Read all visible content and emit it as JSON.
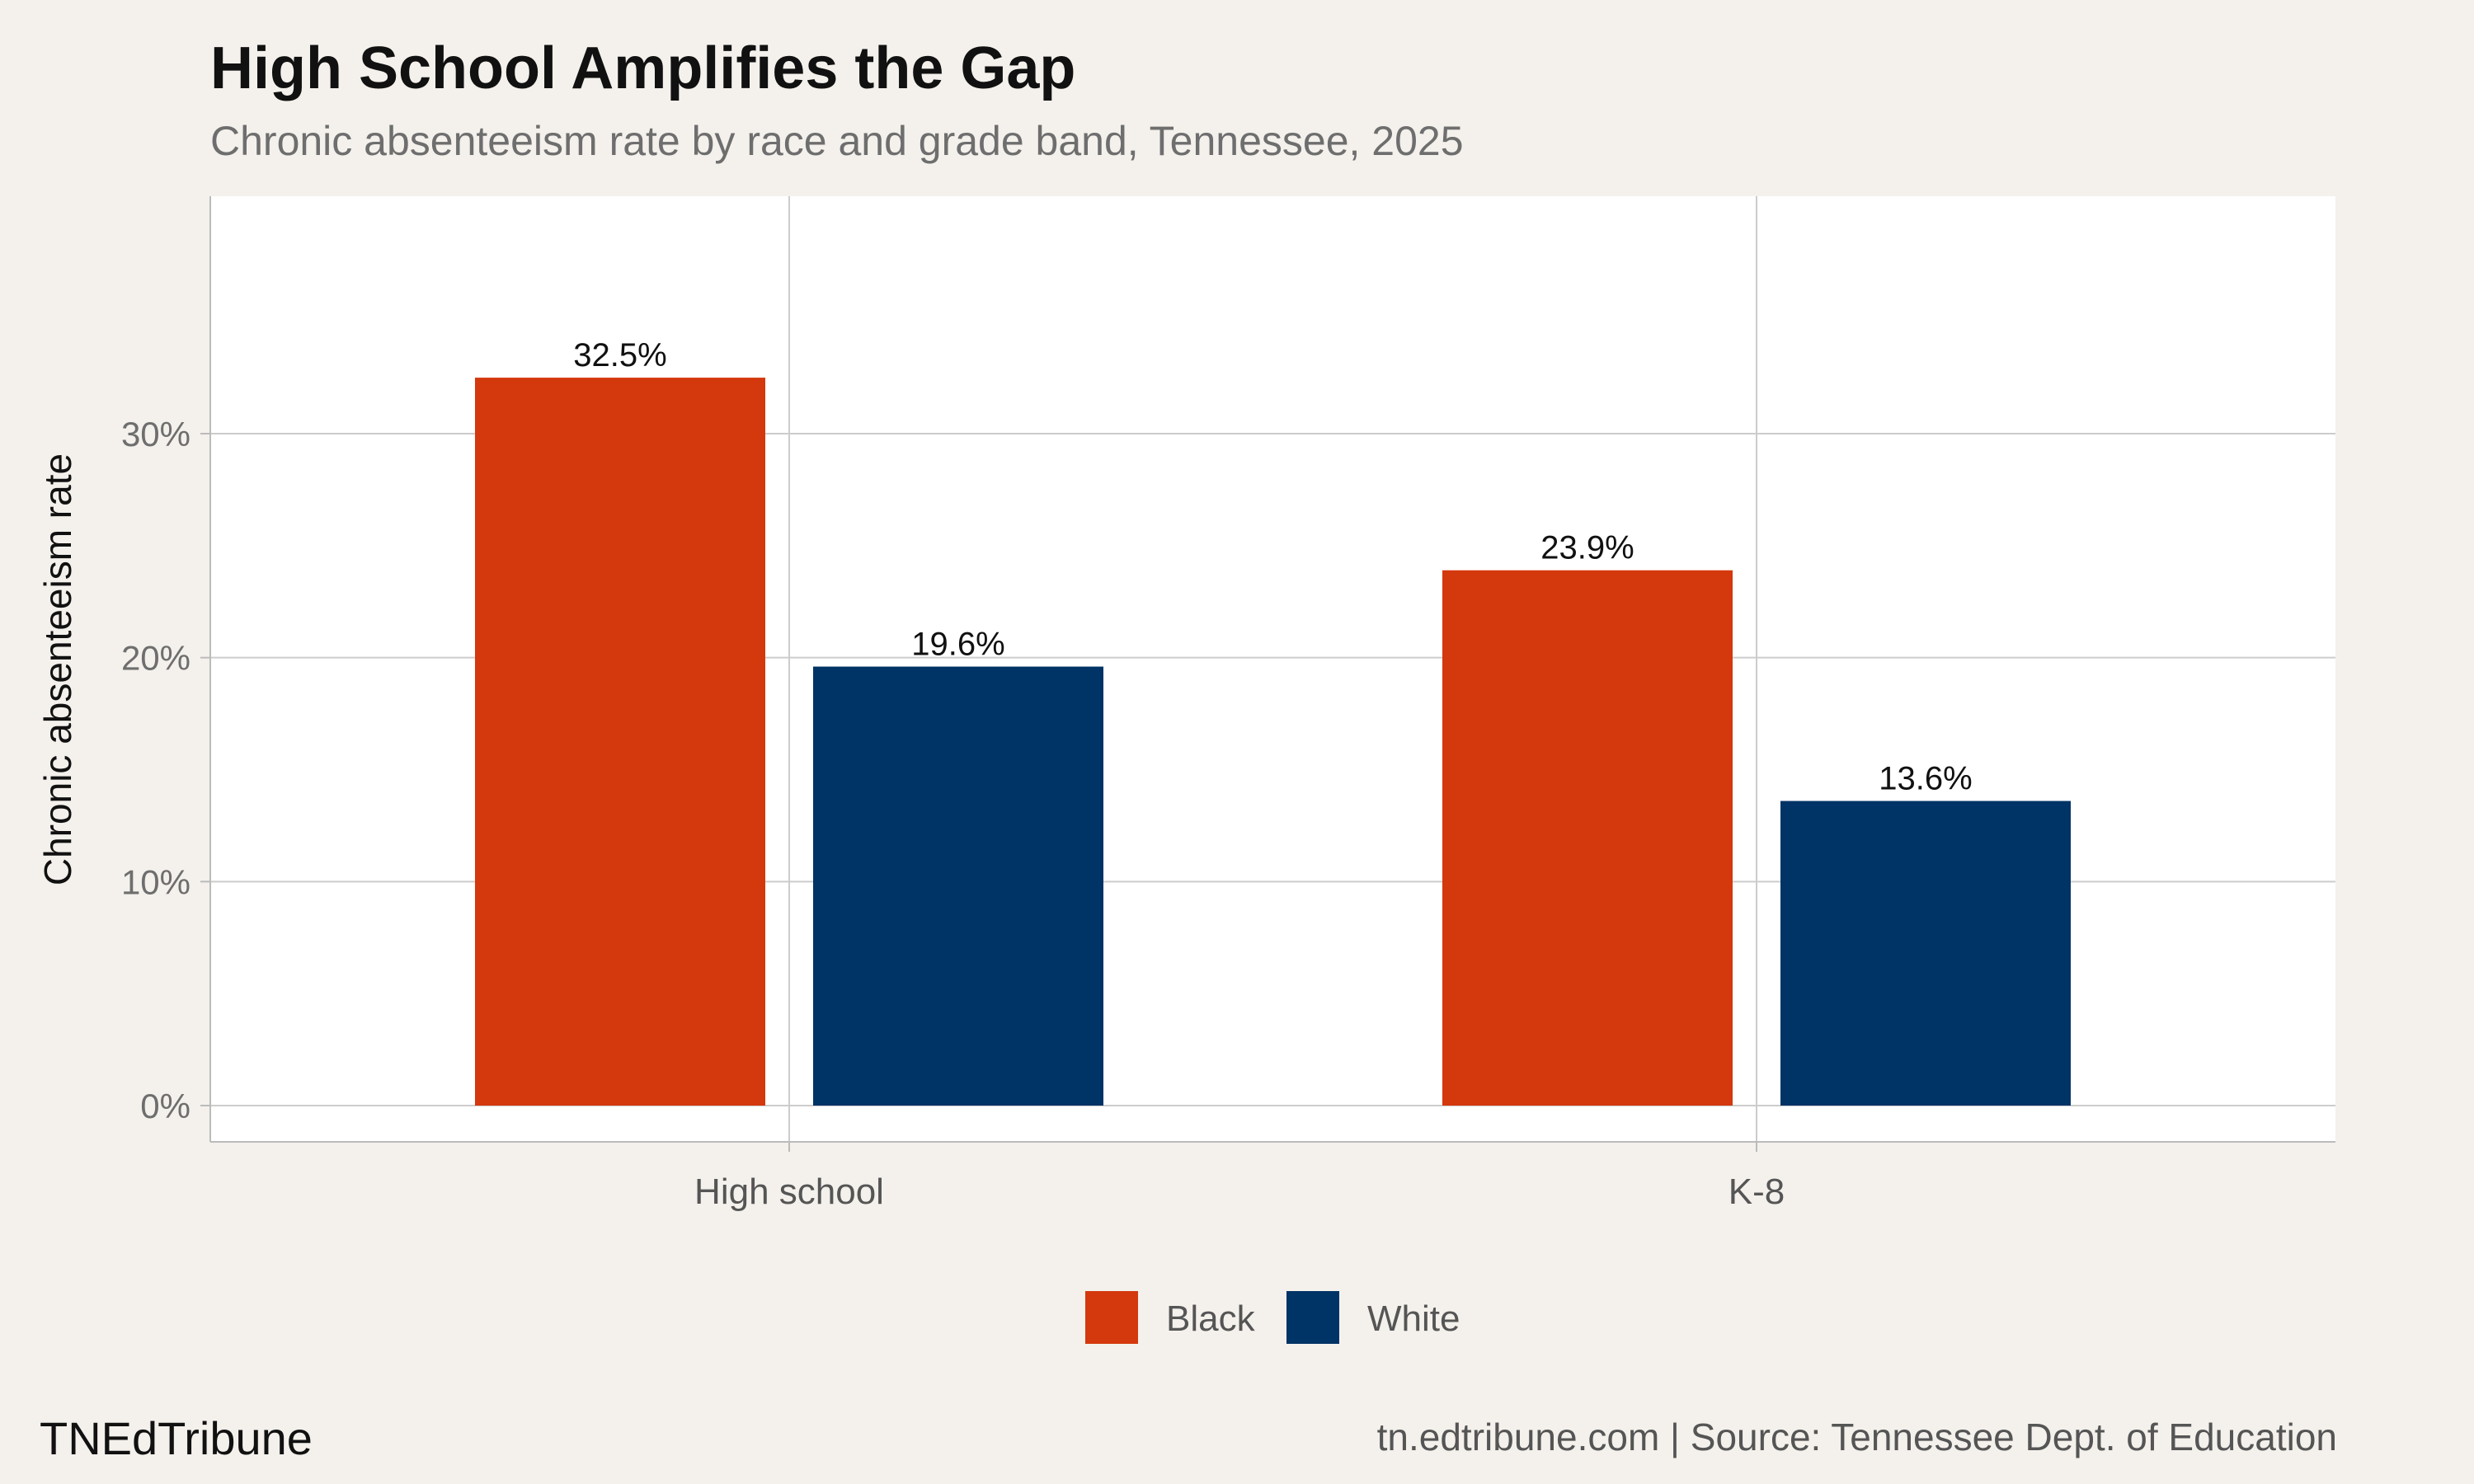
{
  "header": {
    "title": "High School Amplifies the Gap",
    "subtitle": "Chronic absenteeism rate by race and grade band, Tennessee, 2025"
  },
  "footer": {
    "brand": "TNEdTribune",
    "source": "tn.edtribune.com | Source: Tennessee Dept. of Education"
  },
  "chart_data": {
    "type": "bar",
    "title": "High School Amplifies the Gap",
    "subtitle": "Chronic absenteeism rate by race and grade band, Tennessee, 2025",
    "xlabel": "",
    "ylabel": "Chronic absenteeism rate",
    "categories": [
      "High school",
      "K-8"
    ],
    "series": [
      {
        "name": "Black",
        "color": "#d4380d",
        "values": [
          32.5,
          23.9
        ],
        "labels": [
          "32.5%",
          "23.9%"
        ]
      },
      {
        "name": "White",
        "color": "#003366",
        "values": [
          19.6,
          13.6
        ],
        "labels": [
          "19.6%",
          "13.6%"
        ]
      }
    ],
    "ylim": [
      0,
      38
    ],
    "yticks": [
      0,
      10,
      20,
      30
    ],
    "ytick_labels": [
      "0%",
      "10%",
      "20%",
      "30%"
    ],
    "grid": true,
    "legend_position": "bottom"
  }
}
